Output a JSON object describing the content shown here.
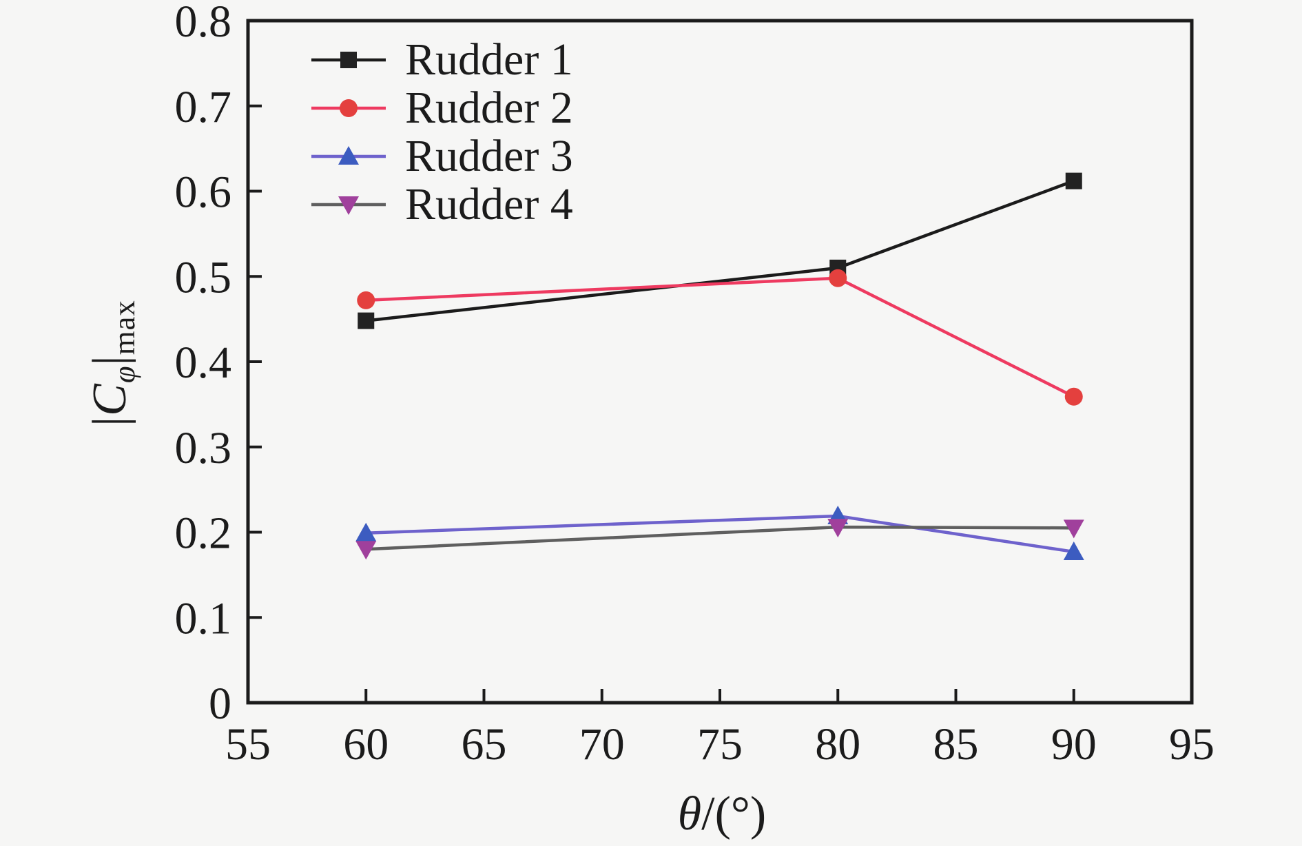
{
  "chart_data": {
    "type": "line",
    "title": "",
    "xlabel": "θ/(°)",
    "ylabel": "|C_φ|_max",
    "xlim": [
      55,
      95
    ],
    "ylim": [
      0,
      0.8
    ],
    "grid": false,
    "legend_position": "top-left-inside",
    "x": [
      60,
      80,
      90
    ],
    "series": [
      {
        "name": "Rudder 1",
        "marker": "square",
        "line_color": "#1b1b1b",
        "marker_color": "#222222",
        "values": [
          0.448,
          0.51,
          0.612
        ]
      },
      {
        "name": "Rudder 2",
        "marker": "circle",
        "line_color": "#ee3a60",
        "marker_color": "#e4403e",
        "values": [
          0.472,
          0.498,
          0.359
        ]
      },
      {
        "name": "Rudder 3",
        "marker": "triangle-up",
        "line_color": "#6e62cc",
        "marker_color": "#3c5cc0",
        "values": [
          0.199,
          0.219,
          0.177
        ]
      },
      {
        "name": "Rudder 4",
        "marker": "triangle-down",
        "line_color": "#5f5f5f",
        "marker_color": "#a0409c",
        "values": [
          0.18,
          0.206,
          0.205
        ]
      }
    ],
    "x_tick_labels": [
      "55",
      "60",
      "65",
      "70",
      "75",
      "80",
      "85",
      "90",
      "95"
    ],
    "x_tick_label_values": [
      55,
      60,
      65,
      70,
      75,
      80,
      85,
      90,
      95
    ],
    "x_tick_marks": [
      60,
      65,
      70,
      75,
      80,
      85,
      90
    ],
    "y_tick_labels": [
      "0",
      "0.1",
      "0.2",
      "0.3",
      "0.4",
      "0.5",
      "0.6",
      "0.7",
      "0.8"
    ],
    "y_tick_label_values": [
      0,
      0.1,
      0.2,
      0.3,
      0.4,
      0.5,
      0.6,
      0.7,
      0.8
    ],
    "y_tick_marks": [
      0.1,
      0.2,
      0.3,
      0.4,
      0.5,
      0.6,
      0.7
    ]
  },
  "labels": {
    "ylabel_bar_open": "|",
    "ylabel_symbol": "C",
    "ylabel_symbol_sub": "φ",
    "ylabel_bar_close": "|",
    "ylabel_sub": "max",
    "xlabel_symbol": "θ",
    "xlabel_rest": "/(°)"
  },
  "style": {
    "background": "#f6f6f5",
    "axis_color": "#1b1b1b"
  }
}
